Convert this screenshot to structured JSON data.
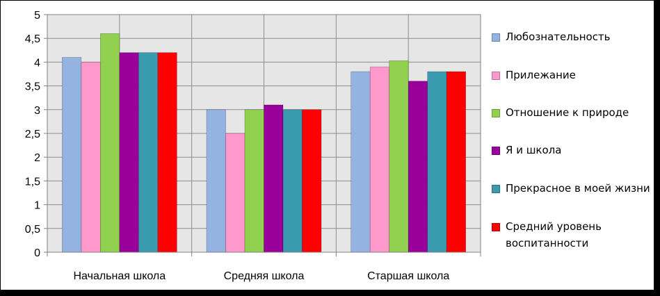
{
  "chart_data": {
    "type": "bar",
    "categories": [
      "Начальная школа",
      "Средняя школа",
      "Старшая школа"
    ],
    "series": [
      {
        "name": "Любознательность",
        "values": [
          4.1,
          3.0,
          3.8
        ],
        "color": "#95b3e0"
      },
      {
        "name": "Прилежание",
        "values": [
          4.0,
          2.5,
          3.9
        ],
        "color": "#ff99cc"
      },
      {
        "name": "Отношение к природе",
        "values": [
          4.6,
          3.0,
          4.03
        ],
        "color": "#92d050"
      },
      {
        "name": "Я и школа",
        "values": [
          4.2,
          3.1,
          3.6
        ],
        "color": "#990099"
      },
      {
        "name": "Прекрасное в моей жизни",
        "values": [
          4.2,
          3.0,
          3.8
        ],
        "color": "#3a9ab0"
      },
      {
        "name": "Средний уровень воспитанности",
        "values": [
          4.2,
          3.0,
          3.8
        ],
        "color": "#ff0000"
      }
    ],
    "y_ticks": [
      "0",
      "0,5",
      "1",
      "1,5",
      "2",
      "2,5",
      "3",
      "3,5",
      "4",
      "4,5",
      "5"
    ],
    "ylim": [
      0,
      5
    ],
    "grid": true,
    "legend": "right",
    "plot_background": "#e6e6e6",
    "grid_color": "#8c8c8c"
  }
}
